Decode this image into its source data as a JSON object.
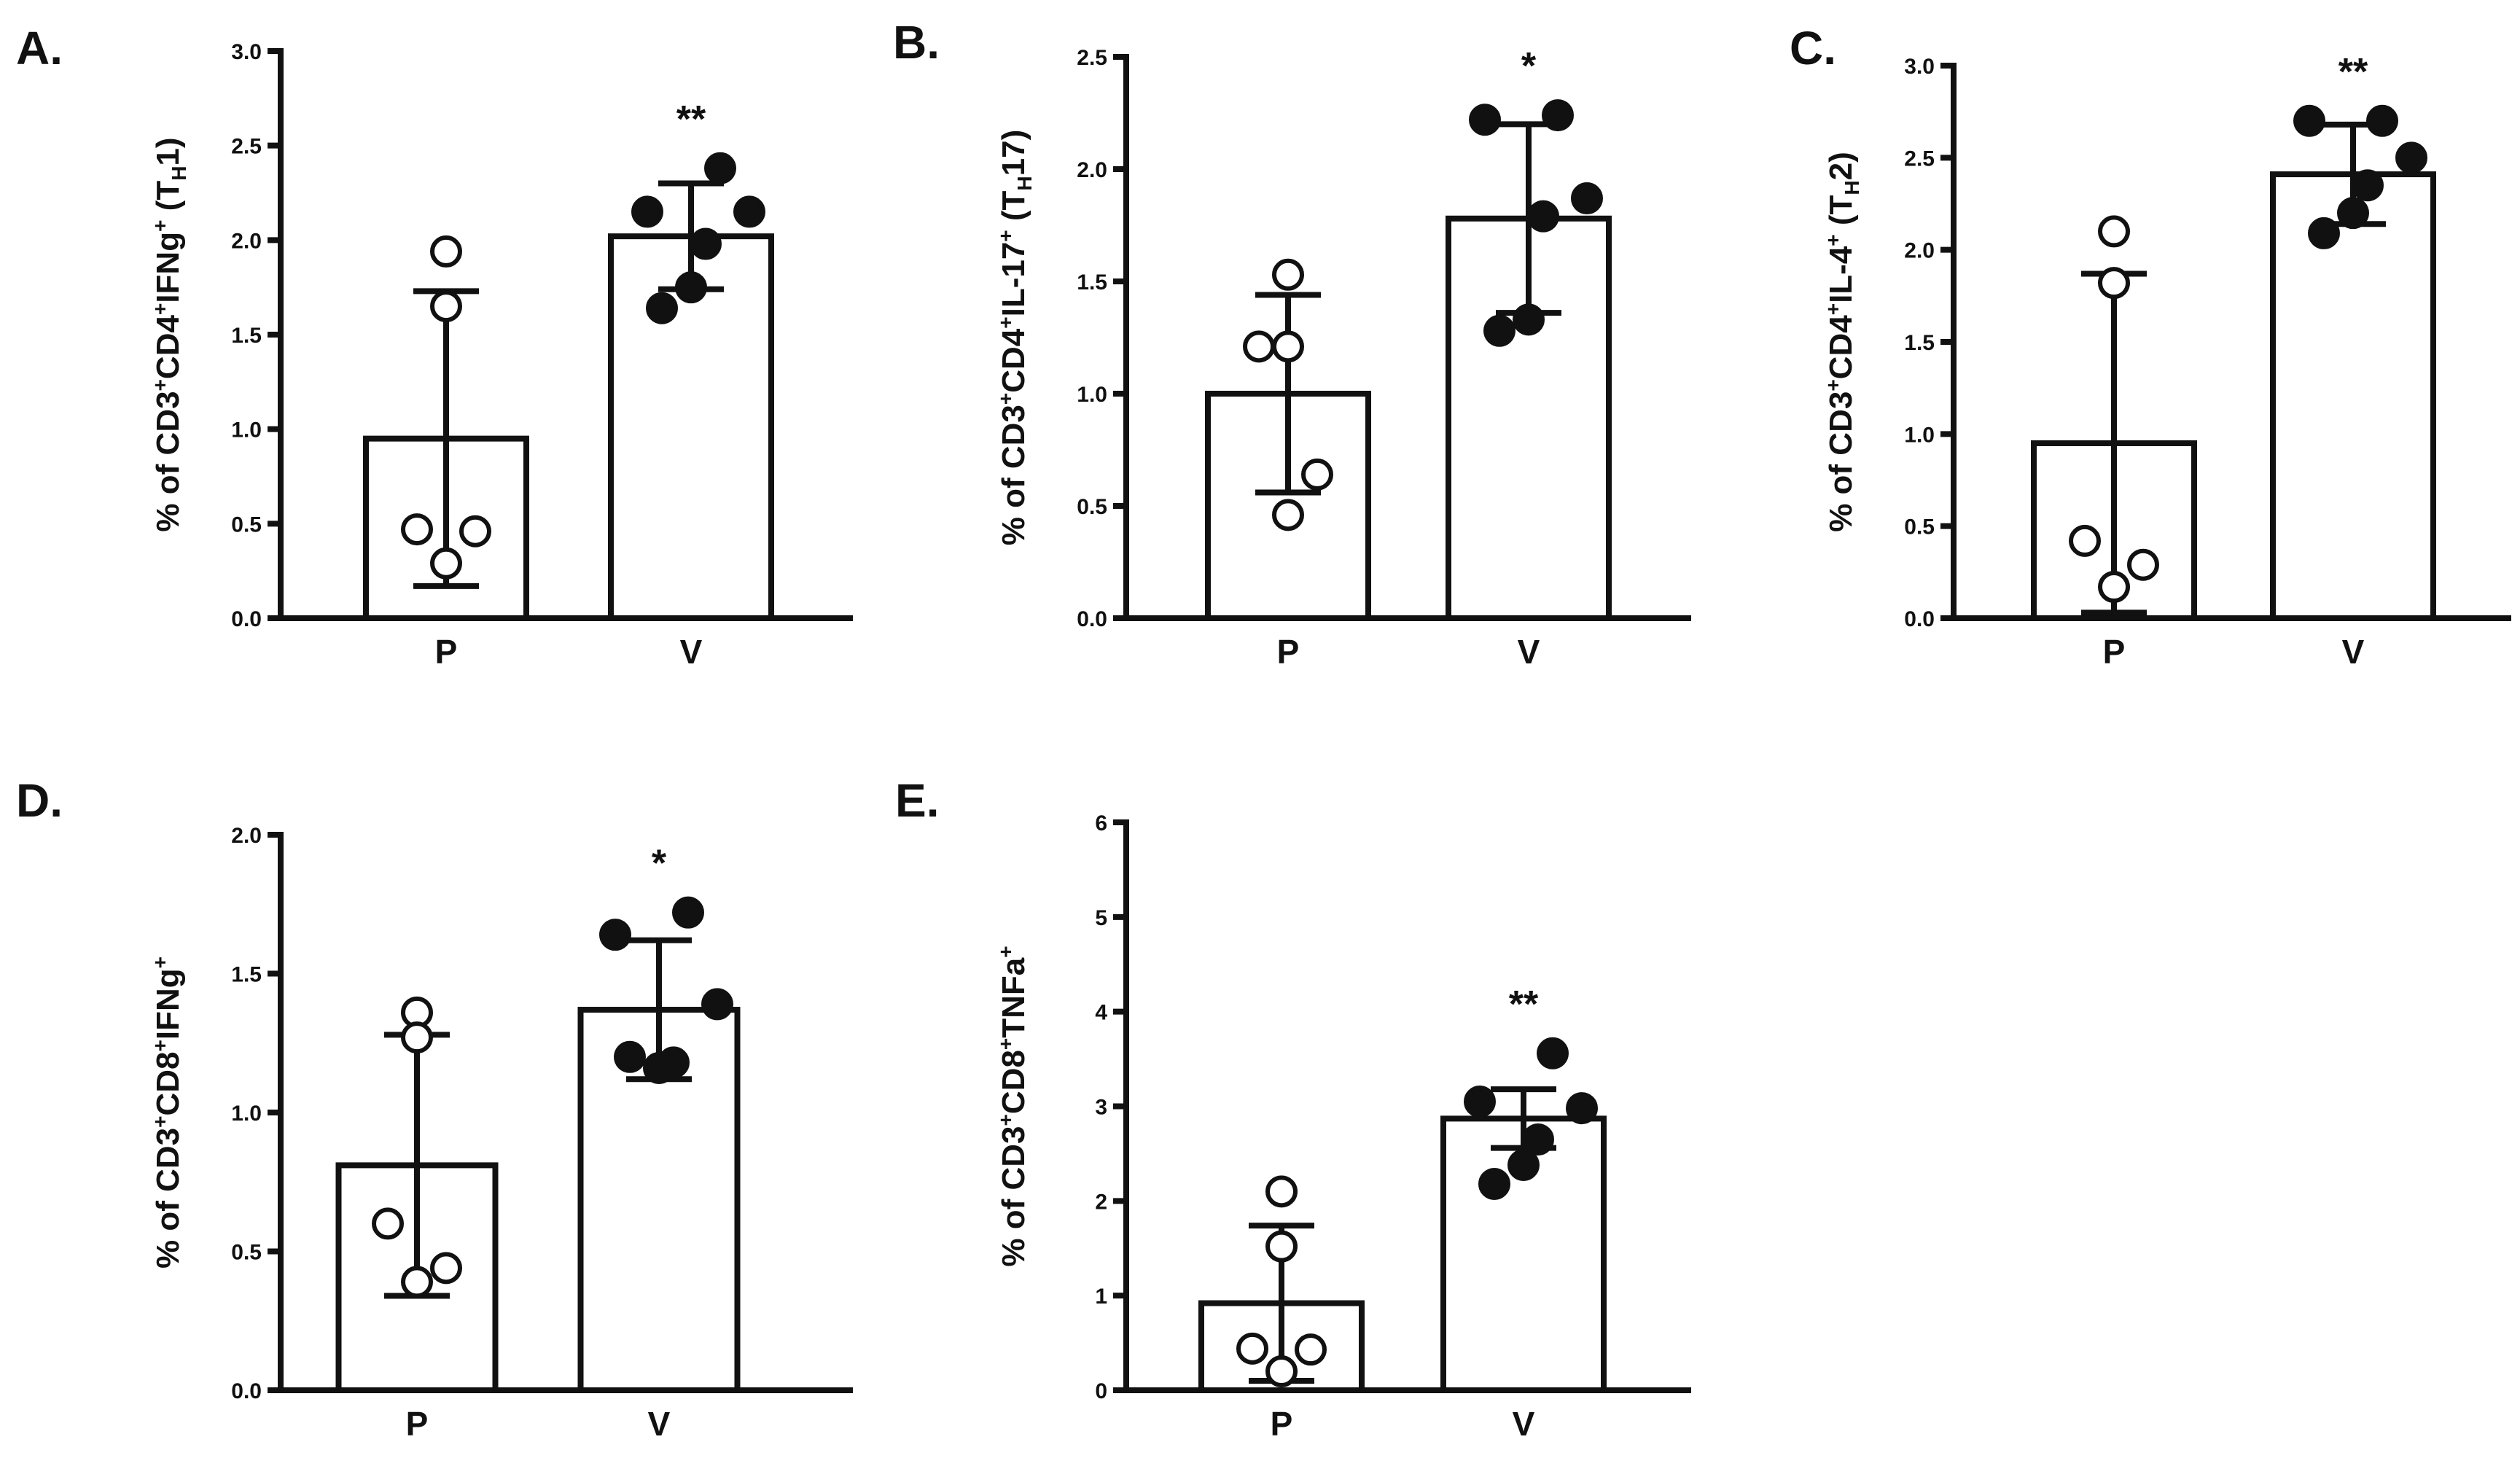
{
  "chart_data": [
    {
      "type": "bar",
      "panel": "A.",
      "categories": [
        "P",
        "V"
      ],
      "ylabel_parts": [
        {
          "t": "% of CD3"
        },
        {
          "t": "+",
          "s": "sup"
        },
        {
          "t": "CD4"
        },
        {
          "t": "+",
          "s": "sup"
        },
        {
          "t": "IFNg"
        },
        {
          "t": "+",
          "s": "sup"
        },
        {
          "t": " (T"
        },
        {
          "t": "H",
          "s": "sub"
        },
        {
          "t": "1)"
        }
      ],
      "ylim": [
        0,
        3.0
      ],
      "yticks": [
        "0.0",
        "0.5",
        "1.0",
        "1.5",
        "2.0",
        "2.5",
        "3.0"
      ],
      "means": [
        0.95,
        2.02
      ],
      "errors": [
        0.78,
        0.28
      ],
      "points": [
        [
          1.94,
          1.65,
          0.47,
          0.46,
          0.29
        ],
        [
          2.38,
          2.15,
          2.15,
          1.98,
          1.75,
          1.64
        ]
      ],
      "significance": "**"
    },
    {
      "type": "bar",
      "panel": "B.",
      "categories": [
        "P",
        "V"
      ],
      "ylabel_parts": [
        {
          "t": "% of CD3"
        },
        {
          "t": "+",
          "s": "sup"
        },
        {
          "t": "CD4"
        },
        {
          "t": "+",
          "s": "sup"
        },
        {
          "t": "IL-17"
        },
        {
          "t": "+",
          "s": "sup"
        },
        {
          "t": " (T"
        },
        {
          "t": "H",
          "s": "sub"
        },
        {
          "t": "17)"
        }
      ],
      "ylim": [
        0,
        2.5
      ],
      "yticks": [
        "0.0",
        "0.5",
        "1.0",
        "1.5",
        "2.0",
        "2.5"
      ],
      "means": [
        1.0,
        1.78
      ],
      "errors": [
        0.44,
        0.42
      ],
      "points": [
        [
          1.53,
          1.21,
          1.21,
          0.64,
          0.46
        ],
        [
          2.24,
          2.22,
          1.87,
          1.79,
          1.33,
          1.28
        ]
      ],
      "significance": "*"
    },
    {
      "type": "bar",
      "panel": "C.",
      "categories": [
        "P",
        "V"
      ],
      "ylabel_parts": [
        {
          "t": "% of CD3"
        },
        {
          "t": "+",
          "s": "sup"
        },
        {
          "t": "CD4"
        },
        {
          "t": "+",
          "s": "sup"
        },
        {
          "t": "IL-4"
        },
        {
          "t": "+",
          "s": "sup"
        },
        {
          "t": " (T"
        },
        {
          "t": "H",
          "s": "sub"
        },
        {
          "t": "2)"
        }
      ],
      "ylim": [
        0,
        3.0
      ],
      "yticks": [
        "0.0",
        "0.5",
        "1.0",
        "1.5",
        "2.0",
        "2.5",
        "3.0"
      ],
      "means": [
        0.95,
        2.41
      ],
      "errors": [
        0.92,
        0.27
      ],
      "points": [
        [
          2.1,
          1.82,
          0.42,
          0.29,
          0.17
        ],
        [
          2.7,
          2.7,
          2.5,
          2.35,
          2.2,
          2.09
        ]
      ],
      "significance": "**"
    },
    {
      "type": "bar",
      "panel": "D.",
      "categories": [
        "P",
        "V"
      ],
      "ylabel_parts": [
        {
          "t": "% of CD3"
        },
        {
          "t": "+",
          "s": "sup"
        },
        {
          "t": "CD8"
        },
        {
          "t": "+",
          "s": "sup"
        },
        {
          "t": "IFNg"
        },
        {
          "t": "+",
          "s": "sup"
        }
      ],
      "ylim": [
        0,
        2.0
      ],
      "yticks": [
        "0.0",
        "0.5",
        "1.0",
        "1.5",
        "2.0"
      ],
      "means": [
        0.81,
        1.37
      ],
      "errors": [
        0.47,
        0.25
      ],
      "points": [
        [
          1.36,
          1.27,
          0.6,
          0.44,
          0.39
        ],
        [
          1.72,
          1.64,
          1.39,
          1.18,
          1.16,
          1.2
        ]
      ],
      "significance": "*"
    },
    {
      "type": "bar",
      "panel": "E.",
      "categories": [
        "P",
        "V"
      ],
      "ylabel_parts": [
        {
          "t": "% of CD3"
        },
        {
          "t": "+",
          "s": "sup"
        },
        {
          "t": "CD8"
        },
        {
          "t": "+",
          "s": "sup"
        },
        {
          "t": "TNFa"
        },
        {
          "t": "+",
          "s": "sup"
        }
      ],
      "ylim": [
        0,
        6
      ],
      "yticks": [
        "0",
        "1",
        "2",
        "3",
        "4",
        "5",
        "6"
      ],
      "means": [
        0.92,
        2.87
      ],
      "errors": [
        0.82,
        0.31
      ],
      "points": [
        [
          2.1,
          1.52,
          0.44,
          0.43,
          0.2
        ],
        [
          3.56,
          3.05,
          2.98,
          2.65,
          2.38,
          2.18
        ]
      ],
      "significance": "**"
    }
  ],
  "colors": {
    "ink": "#111111",
    "bar_fill": "#ffffff",
    "open_point_fill": "#ffffff",
    "closed_point_fill": "#111111"
  }
}
